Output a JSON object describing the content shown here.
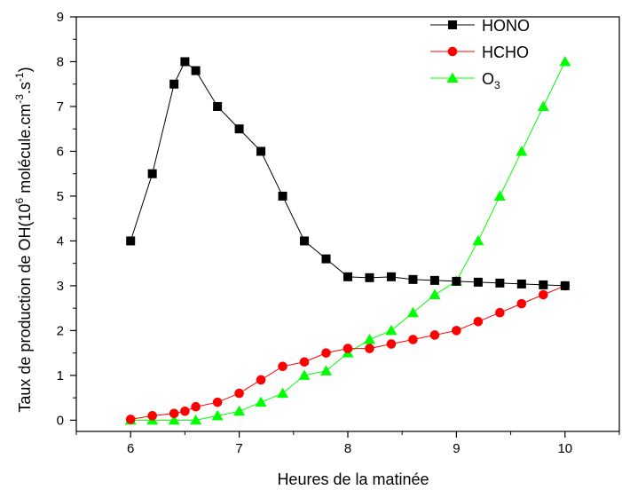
{
  "chart_data": {
    "type": "line",
    "xlabel": "Heures de la matinée",
    "ylabel": {
      "pre": "Taux de production de OH(10",
      "sup1": "6",
      "mid": " molécule.cm",
      "sup2": "-3",
      "mid2": ".s",
      "sup3": "-1",
      "post": ")"
    },
    "xlim": [
      5.5,
      10.5
    ],
    "ylim": [
      -0.25,
      9
    ],
    "xticks": [
      6,
      7,
      8,
      9,
      10
    ],
    "yticks": [
      0,
      1,
      2,
      3,
      4,
      5,
      6,
      7,
      8,
      9
    ],
    "grid": false,
    "legend_position": "top-right",
    "series": [
      {
        "name": "HONO",
        "color": "#000000",
        "marker": "square",
        "x": [
          6.0,
          6.2,
          6.4,
          6.5,
          6.6,
          6.8,
          7.0,
          7.2,
          7.4,
          7.6,
          7.8,
          8.0,
          8.2,
          8.4,
          8.6,
          8.8,
          9.0,
          9.2,
          9.4,
          9.6,
          9.8,
          10.0
        ],
        "y": [
          4.0,
          5.5,
          7.5,
          8.0,
          7.8,
          7.0,
          6.5,
          6.0,
          5.0,
          4.0,
          3.6,
          3.2,
          3.18,
          3.2,
          3.14,
          3.12,
          3.1,
          3.08,
          3.06,
          3.04,
          3.02,
          3.0
        ]
      },
      {
        "name": "HCHO",
        "color": "#ff0000",
        "marker": "circle",
        "x": [
          6.0,
          6.2,
          6.4,
          6.5,
          6.6,
          6.8,
          7.0,
          7.2,
          7.4,
          7.6,
          7.8,
          8.0,
          8.2,
          8.4,
          8.6,
          8.8,
          9.0,
          9.2,
          9.4,
          9.6,
          9.8,
          10.0
        ],
        "y": [
          0.02,
          0.1,
          0.15,
          0.2,
          0.3,
          0.4,
          0.6,
          0.9,
          1.2,
          1.3,
          1.5,
          1.6,
          1.6,
          1.7,
          1.8,
          1.9,
          2.0,
          2.2,
          2.4,
          2.6,
          2.8,
          3.0
        ]
      },
      {
        "name": "O",
        "name_sub": "3",
        "color": "#00ff00",
        "marker": "triangle",
        "x": [
          6.0,
          6.2,
          6.4,
          6.6,
          6.8,
          7.0,
          7.2,
          7.4,
          7.6,
          7.8,
          8.0,
          8.2,
          8.4,
          8.6,
          8.8,
          9.0,
          9.2,
          9.4,
          9.6,
          9.8,
          10.0
        ],
        "y": [
          0.0,
          0.0,
          0.0,
          0.0,
          0.1,
          0.2,
          0.4,
          0.6,
          1.0,
          1.1,
          1.5,
          1.8,
          2.0,
          2.4,
          2.8,
          3.1,
          4.0,
          5.0,
          6.0,
          7.0,
          8.0
        ]
      }
    ]
  }
}
